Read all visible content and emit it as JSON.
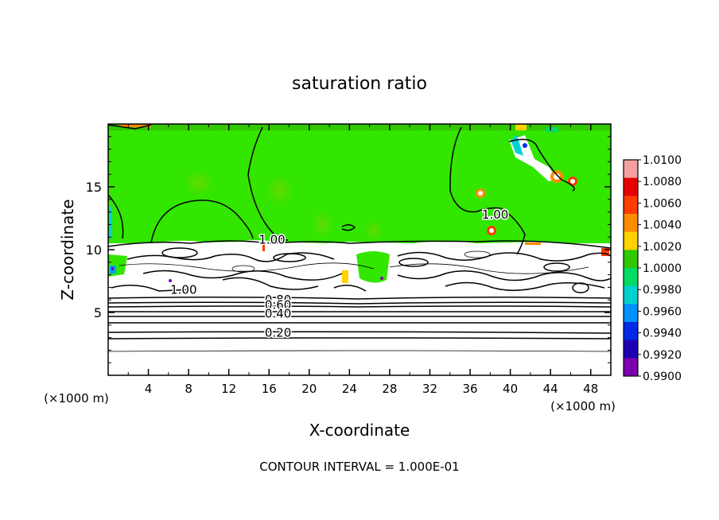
{
  "chart_data": {
    "type": "heatmap",
    "title": "saturation ratio",
    "xlabel": "X-coordinate",
    "ylabel": "Z-coordinate",
    "x_unit": "(×1000 m)",
    "y_unit": "(×1000 m)",
    "xlim": [
      0,
      50
    ],
    "ylim": [
      0,
      20
    ],
    "x_ticks": [
      "4",
      "8",
      "12",
      "16",
      "20",
      "24",
      "28",
      "32",
      "36",
      "40",
      "44",
      "48"
    ],
    "y_ticks": [
      "5",
      "10",
      "15"
    ],
    "footer": "CONTOUR INTERVAL = 1.000E-01",
    "colorbar": {
      "levels": [
        "1.0100",
        "1.0080",
        "1.0060",
        "1.0040",
        "1.0020",
        "1.0000",
        "0.9980",
        "0.9960",
        "0.9940",
        "0.9920",
        "0.9900"
      ],
      "colors": [
        "#f4a0a0",
        "#e80000",
        "#ff3c00",
        "#ff8c00",
        "#ffd200",
        "#32c800",
        "#00dc64",
        "#00d2d2",
        "#0090ff",
        "#0028e6",
        "#1e00b4",
        "#7a00b0"
      ]
    },
    "contour_labels": [
      {
        "text": "1.00",
        "x": 16.3,
        "z": 10.8
      },
      {
        "text": "1.00",
        "x": 7.5,
        "z": 6.8
      },
      {
        "text": "1.00",
        "x": 38.5,
        "z": 12.8
      },
      {
        "text": "0.80",
        "x": 16.9,
        "z": 6.0
      },
      {
        "text": "0.60",
        "x": 16.9,
        "z": 5.6
      },
      {
        "text": "0.40",
        "x": 16.9,
        "z": 4.9
      },
      {
        "text": "0.20",
        "x": 16.9,
        "z": 3.4
      }
    ],
    "contour_levels_z": [
      2.0,
      2.7,
      3.4,
      4.05,
      4.6,
      5.0,
      5.3,
      5.55,
      5.8,
      6.05
    ],
    "cloud_top_z": 10.3,
    "background_color": "#32e600"
  }
}
